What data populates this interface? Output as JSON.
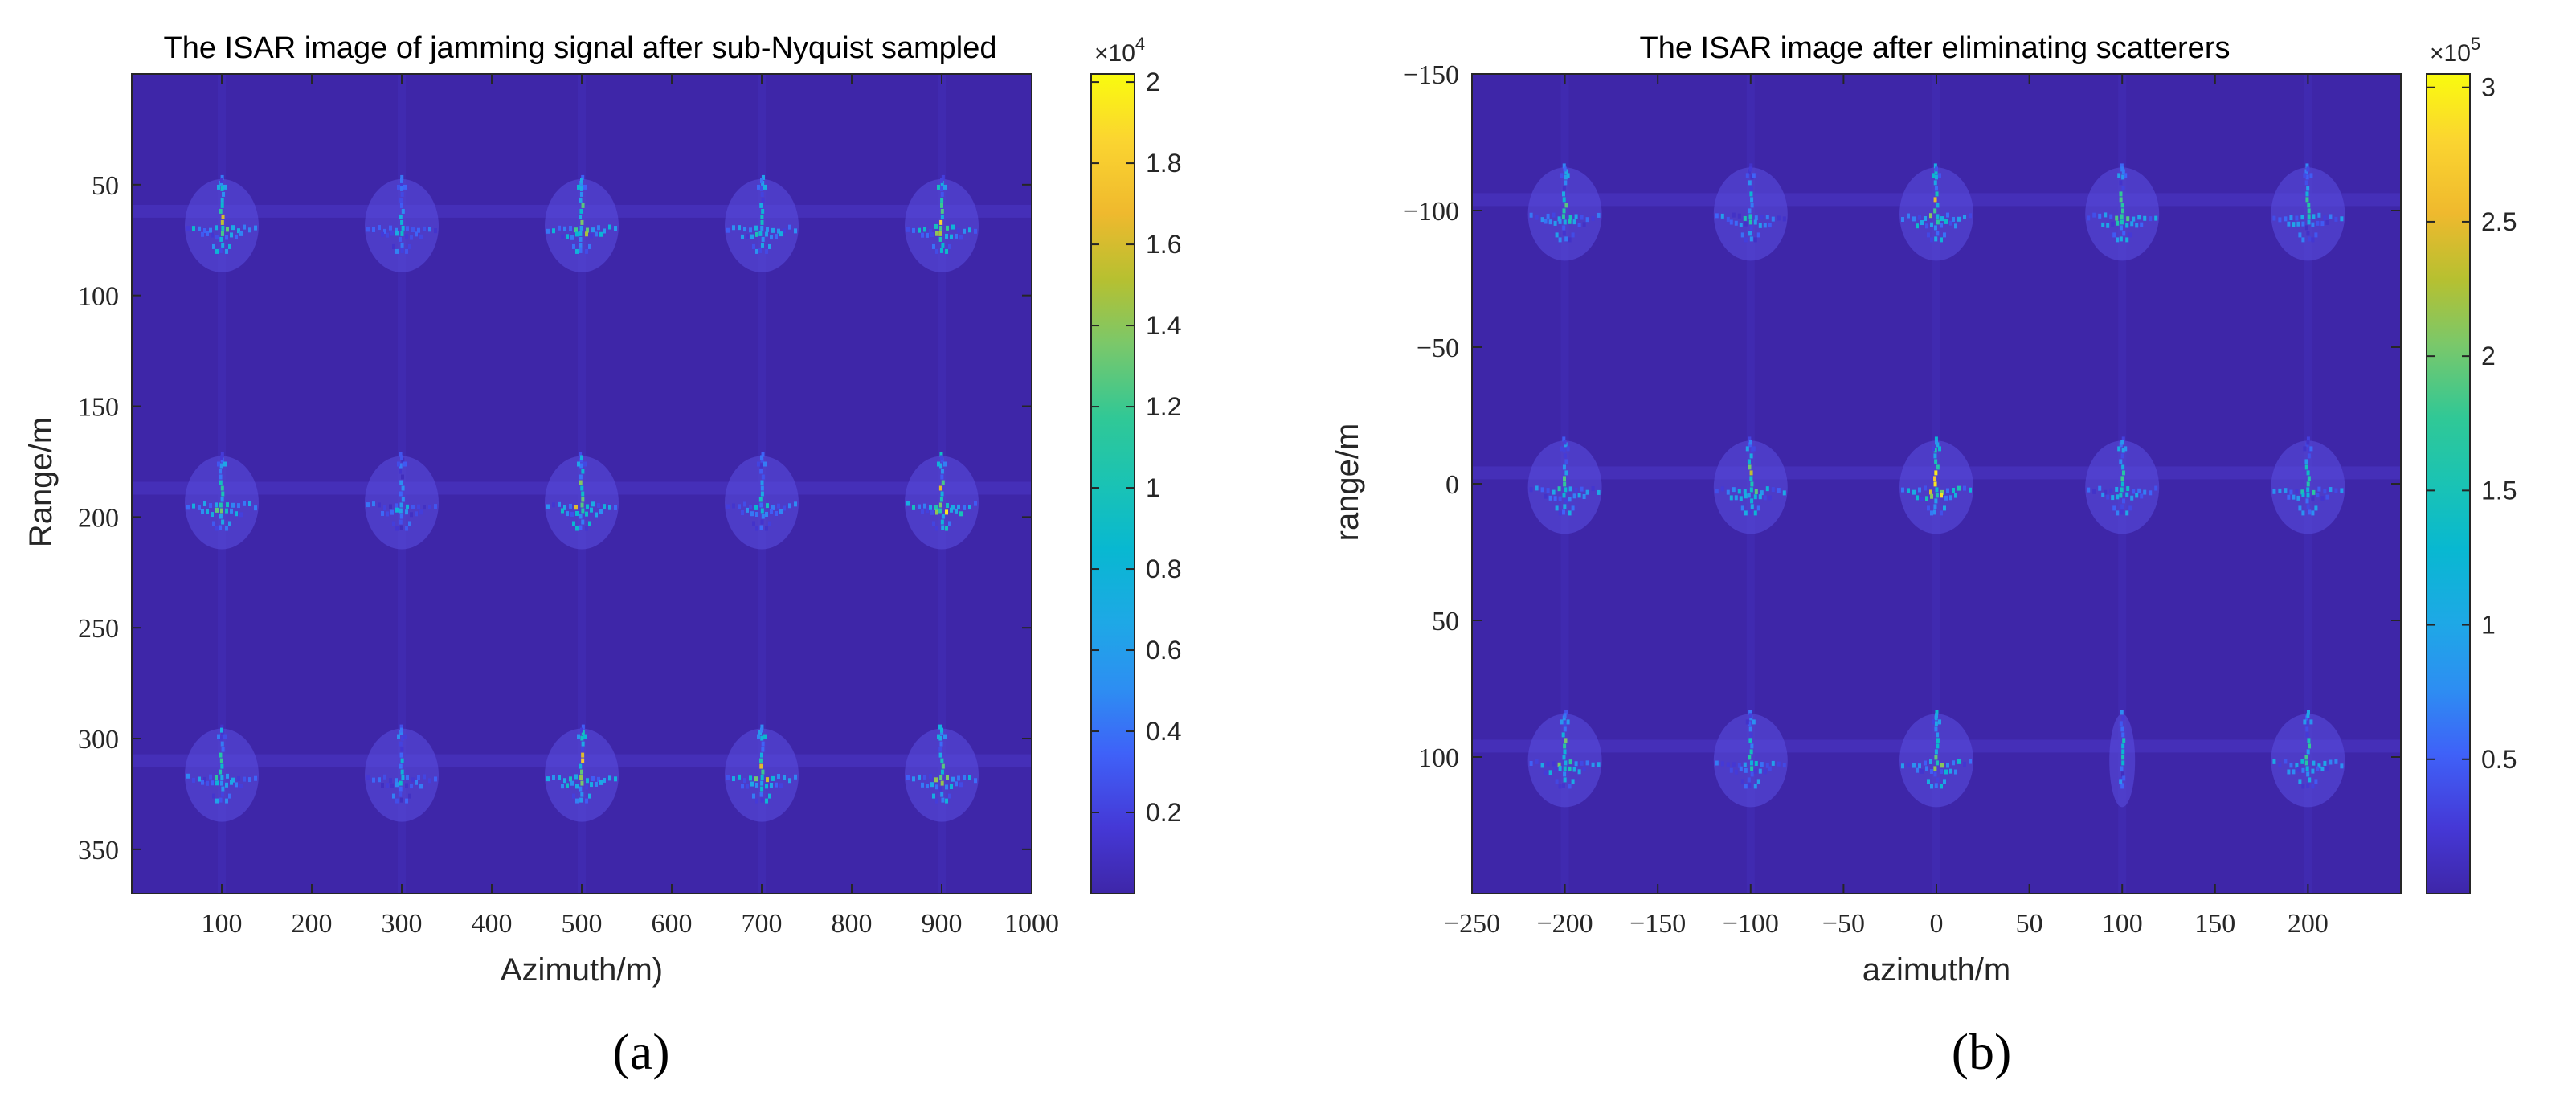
{
  "figure": {
    "panel_labels": [
      "(a)",
      "(b)"
    ]
  },
  "chart_data": [
    {
      "type": "heatmap",
      "title": "The ISAR image of jamming signal after sub-Nyquist sampled",
      "xlabel": "Azimuth/m)",
      "ylabel": "Range/m",
      "xlim": [
        0,
        1000
      ],
      "ylim": [
        370,
        0
      ],
      "y_reversed": true,
      "xticks": [
        100,
        200,
        300,
        400,
        500,
        600,
        700,
        800,
        900,
        1000
      ],
      "yticks": [
        50,
        100,
        150,
        200,
        250,
        300,
        350
      ],
      "tick_font": "serif",
      "target_centers_x": [
        100,
        300,
        500,
        700,
        900
      ],
      "target_centers_y": [
        62,
        187,
        310
      ],
      "target_peak_values": [
        [
          17500,
          9000,
          16000,
          14000,
          19500
        ],
        [
          14500,
          8500,
          17000,
          10000,
          20200
        ],
        [
          13000,
          9500,
          18500,
          17500,
          15500
        ]
      ],
      "background_value": 300,
      "colorbar": {
        "range": [
          0,
          20200
        ],
        "ticks": [
          0.2,
          0.4,
          0.6,
          0.8,
          1,
          1.2,
          1.4,
          1.6,
          1.8,
          2
        ],
        "tick_values": [
          2000,
          4000,
          6000,
          8000,
          10000,
          12000,
          14000,
          16000,
          18000,
          20000
        ],
        "exponent_base": "×10",
        "exponent_power": "4"
      },
      "colors": {
        "background": "#3e26a8"
      }
    },
    {
      "type": "heatmap",
      "title": "The ISAR image after eliminating scatterers",
      "xlabel": "azimuth/m",
      "ylabel": "range/m",
      "xlim": [
        -250,
        250
      ],
      "ylim": [
        -150,
        150
      ],
      "y_reversed": true,
      "xticks": [
        -250,
        -200,
        -150,
        -100,
        -50,
        0,
        50,
        100,
        150,
        200
      ],
      "xtick_labels": [
        "−250",
        "−200",
        "−150",
        "−100",
        "−50",
        "0",
        "50",
        "100",
        "150",
        "200"
      ],
      "yticks": [
        -150,
        -100,
        -50,
        0,
        50,
        100
      ],
      "ytick_labels": [
        "−150",
        "−100",
        "−50",
        "0",
        "50",
        "100"
      ],
      "tick_font": "serif",
      "target_centers_x": [
        -200,
        -100,
        0,
        100,
        200
      ],
      "target_centers_y": [
        -104,
        -4,
        96
      ],
      "target_peak_values": [
        [
          200000,
          180000,
          260000,
          220000,
          190000
        ],
        [
          210000,
          240000,
          300000,
          200000,
          180000
        ],
        [
          220000,
          190000,
          250000,
          150000,
          200000
        ]
      ],
      "thin_targets": [
        [
          2,
          3
        ]
      ],
      "background_value": 5000,
      "colorbar": {
        "range": [
          0,
          305000
        ],
        "ticks": [
          0.5,
          1,
          1.5,
          2,
          2.5,
          3
        ],
        "tick_values": [
          50000,
          100000,
          150000,
          200000,
          250000,
          300000
        ],
        "exponent_base": "×10",
        "exponent_power": "5"
      },
      "colors": {
        "background": "#3e26a8"
      }
    }
  ]
}
